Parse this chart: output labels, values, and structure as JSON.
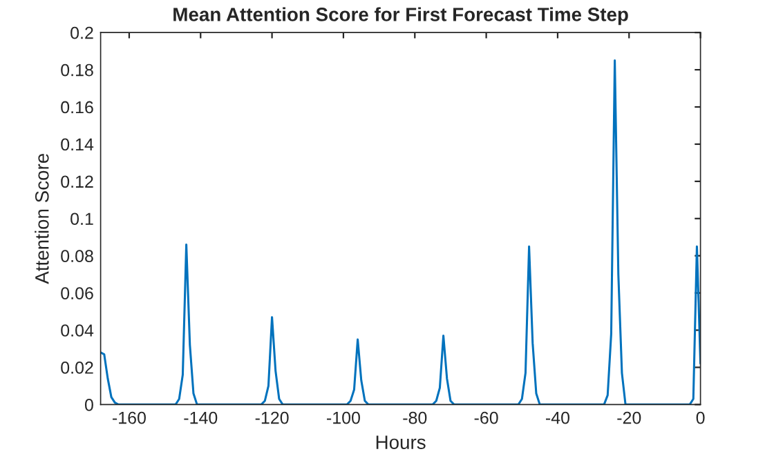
{
  "chart_data": {
    "type": "line",
    "title": "Mean Attention Score for First Forecast Time Step",
    "xlabel": "Hours",
    "ylabel": "Attention Score",
    "xlim": [
      -168,
      0
    ],
    "xticks": [
      -160,
      -140,
      -120,
      -100,
      -80,
      -60,
      -40,
      -20,
      0
    ],
    "ylim": [
      0,
      0.2
    ],
    "yticks": [
      0,
      0.02,
      0.04,
      0.06,
      0.08,
      0.1,
      0.12,
      0.14,
      0.16,
      0.18,
      0.2
    ],
    "grid": false,
    "legend": false,
    "marker": "none",
    "line_style": "solid",
    "series": [
      {
        "color": "#0072bd",
        "x": [
          -168,
          -167,
          -166,
          -165,
          -164,
          -163,
          -147,
          -146,
          -145,
          -144,
          -143,
          -142,
          -141,
          -123,
          -122,
          -121,
          -120,
          -119,
          -118,
          -117,
          -99,
          -98,
          -97,
          -96,
          -95,
          -94,
          -93,
          -75,
          -74,
          -73,
          -72,
          -71,
          -70,
          -69,
          -51,
          -50,
          -49,
          -48,
          -47,
          -46,
          -45,
          -27,
          -26,
          -25,
          -24,
          -23,
          -22,
          -21,
          -3,
          -2,
          -1,
          0
        ],
        "values": [
          0.028,
          0.027,
          0.014,
          0.004,
          0.001,
          0,
          0,
          0.003,
          0.016,
          0.086,
          0.032,
          0.006,
          0,
          0,
          0.002,
          0.01,
          0.047,
          0.018,
          0.003,
          0,
          0,
          0.002,
          0.008,
          0.035,
          0.013,
          0.002,
          0,
          0,
          0.002,
          0.009,
          0.037,
          0.014,
          0.002,
          0,
          0,
          0.003,
          0.017,
          0.085,
          0.033,
          0.006,
          0,
          0,
          0.005,
          0.038,
          0.185,
          0.07,
          0.017,
          0,
          0,
          0.003,
          0.085,
          0.022
        ]
      }
    ]
  }
}
